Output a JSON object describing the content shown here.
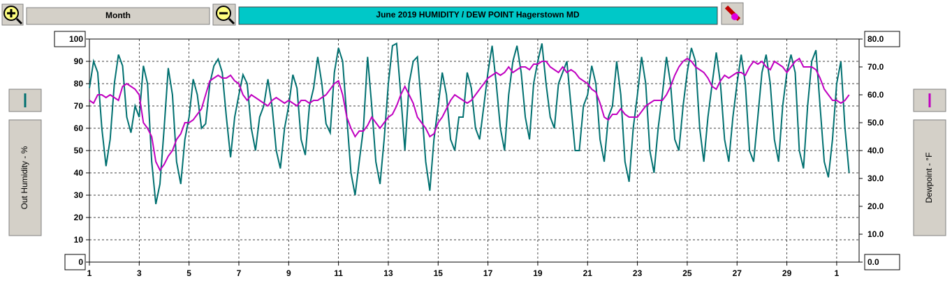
{
  "toolbar": {
    "range": "Month"
  },
  "chart_data": {
    "type": "line",
    "title": "June  2019     HUMIDITY / DEW POINT  Hagerstown MD",
    "ylabel": "Out Humidity - %",
    "y2label": "Dewpoint - °F",
    "grid": true,
    "xlim": [
      0,
      30.9
    ],
    "ylim": [
      0,
      100
    ],
    "y2lim": [
      0,
      80
    ],
    "xticks": [
      {
        "value": 0,
        "label": "1"
      },
      {
        "value": 2,
        "label": "3"
      },
      {
        "value": 4,
        "label": "5"
      },
      {
        "value": 6,
        "label": "7"
      },
      {
        "value": 8,
        "label": "9"
      },
      {
        "value": 10,
        "label": "11"
      },
      {
        "value": 12,
        "label": "13"
      },
      {
        "value": 14,
        "label": "15"
      },
      {
        "value": 16,
        "label": "17"
      },
      {
        "value": 18,
        "label": "19"
      },
      {
        "value": 20,
        "label": "21"
      },
      {
        "value": 22,
        "label": "23"
      },
      {
        "value": 24,
        "label": "25"
      },
      {
        "value": 26,
        "label": "27"
      },
      {
        "value": 28,
        "label": "29"
      },
      {
        "value": 30,
        "label": "1"
      }
    ],
    "yticks": [
      0,
      10,
      20,
      30,
      40,
      50,
      60,
      70,
      80,
      90,
      100
    ],
    "y2ticks": [
      {
        "value": 0,
        "label": "0.0"
      },
      {
        "value": 10,
        "label": "10.0"
      },
      {
        "value": 20,
        "label": "20.0"
      },
      {
        "value": 30,
        "label": "30.0"
      },
      {
        "value": 40,
        "label": "40.0"
      },
      {
        "value": 50,
        "label": "50.0"
      },
      {
        "value": 60,
        "label": "60.0"
      },
      {
        "value": 70,
        "label": "70.0"
      },
      {
        "value": 80,
        "label": "80.0"
      }
    ],
    "x": [
      0,
      0.167,
      0.333,
      0.5,
      0.667,
      0.833,
      1,
      1.167,
      1.333,
      1.5,
      1.667,
      1.833,
      2,
      2.167,
      2.333,
      2.5,
      2.667,
      2.833,
      3,
      3.167,
      3.333,
      3.5,
      3.667,
      3.833,
      4,
      4.167,
      4.333,
      4.5,
      4.667,
      4.833,
      5,
      5.167,
      5.333,
      5.5,
      5.667,
      5.833,
      6,
      6.167,
      6.333,
      6.5,
      6.667,
      6.833,
      7,
      7.167,
      7.333,
      7.5,
      7.667,
      7.833,
      8,
      8.167,
      8.333,
      8.5,
      8.667,
      8.833,
      9,
      9.167,
      9.333,
      9.5,
      9.667,
      9.833,
      10,
      10.167,
      10.333,
      10.5,
      10.667,
      10.833,
      11,
      11.167,
      11.333,
      11.5,
      11.667,
      11.833,
      12,
      12.167,
      12.333,
      12.5,
      12.667,
      12.833,
      13,
      13.167,
      13.333,
      13.5,
      13.667,
      13.833,
      14,
      14.167,
      14.333,
      14.5,
      14.667,
      14.833,
      15,
      15.167,
      15.333,
      15.5,
      15.667,
      15.833,
      16,
      16.167,
      16.333,
      16.5,
      16.667,
      16.833,
      17,
      17.167,
      17.333,
      17.5,
      17.667,
      17.833,
      18,
      18.167,
      18.333,
      18.5,
      18.667,
      18.833,
      19,
      19.167,
      19.333,
      19.5,
      19.667,
      19.833,
      20,
      20.167,
      20.333,
      20.5,
      20.667,
      20.833,
      21,
      21.167,
      21.333,
      21.5,
      21.667,
      21.833,
      22,
      22.167,
      22.333,
      22.5,
      22.667,
      22.833,
      23,
      23.167,
      23.333,
      23.5,
      23.667,
      23.833,
      24,
      24.167,
      24.333,
      24.5,
      24.667,
      24.833,
      25,
      25.167,
      25.333,
      25.5,
      25.667,
      25.833,
      26,
      26.167,
      26.333,
      26.5,
      26.667,
      26.833,
      27,
      27.167,
      27.333,
      27.5,
      27.667,
      27.833,
      28,
      28.167,
      28.333,
      28.5,
      28.667,
      28.833,
      29,
      29.167,
      29.333,
      29.5,
      29.667,
      29.833,
      30,
      30.167,
      30.333,
      30.5
    ],
    "series": [
      {
        "name": "Out Humidity",
        "color": "#007070",
        "axis": "y",
        "values": [
          78,
          90,
          85,
          60,
          43,
          55,
          80,
          93,
          88,
          65,
          58,
          70,
          65,
          88,
          80,
          45,
          26,
          35,
          60,
          87,
          75,
          45,
          35,
          55,
          65,
          82,
          75,
          60,
          62,
          80,
          88,
          91,
          85,
          65,
          47,
          65,
          75,
          84,
          80,
          60,
          50,
          65,
          70,
          82,
          70,
          50,
          42,
          60,
          70,
          84,
          78,
          55,
          48,
          70,
          78,
          92,
          80,
          62,
          58,
          85,
          96,
          90,
          65,
          40,
          30,
          45,
          60,
          92,
          70,
          45,
          35,
          55,
          80,
          97,
          98,
          75,
          50,
          80,
          90,
          92,
          70,
          45,
          32,
          55,
          70,
          85,
          75,
          55,
          50,
          65,
          65,
          85,
          78,
          60,
          55,
          70,
          85,
          97,
          80,
          60,
          50,
          75,
          90,
          97,
          85,
          65,
          55,
          80,
          90,
          98,
          80,
          65,
          60,
          80,
          85,
          90,
          70,
          50,
          50,
          70,
          75,
          88,
          80,
          55,
          45,
          65,
          70,
          90,
          75,
          45,
          36,
          60,
          75,
          92,
          80,
          50,
          40,
          60,
          75,
          92,
          80,
          55,
          50,
          70,
          85,
          96,
          90,
          60,
          45,
          65,
          80,
          94,
          80,
          55,
          45,
          65,
          80,
          93,
          80,
          50,
          45,
          65,
          85,
          93,
          80,
          55,
          45,
          70,
          85,
          93,
          85,
          50,
          42,
          70,
          90,
          95,
          70,
          45,
          38,
          55,
          80,
          90,
          60,
          40
        ]
      },
      {
        "name": "Dewpoint",
        "color": "#c000c0",
        "axis": "y2",
        "values": [
          58,
          57,
          60,
          60,
          59,
          60,
          59,
          58,
          63,
          64,
          63,
          62,
          60,
          50,
          48,
          45,
          36,
          33,
          35,
          38,
          40,
          44,
          46,
          50,
          50,
          51,
          53,
          55,
          60,
          65,
          66,
          67,
          66,
          66,
          67,
          65,
          64,
          60,
          58,
          60,
          59,
          58,
          57,
          56,
          58,
          59,
          58,
          57,
          58,
          57,
          56,
          58,
          58,
          57,
          58,
          58,
          59,
          60,
          62,
          64,
          65,
          60,
          52,
          48,
          45,
          47,
          47,
          49,
          52,
          50,
          48,
          50,
          52,
          53,
          56,
          60,
          63,
          60,
          57,
          52,
          50,
          48,
          45,
          46,
          50,
          52,
          55,
          58,
          60,
          59,
          58,
          57,
          58,
          60,
          62,
          64,
          66,
          67,
          68,
          67,
          68,
          70,
          68,
          69,
          70,
          70,
          69,
          71,
          71,
          72,
          72,
          70,
          69,
          68,
          70,
          68,
          69,
          68,
          66,
          65,
          64,
          62,
          61,
          57,
          52,
          51,
          53,
          53,
          55,
          53,
          52,
          52,
          52,
          54,
          56,
          57,
          58,
          58,
          58,
          60,
          63,
          67,
          70,
          72,
          73,
          72,
          70,
          69,
          68,
          66,
          63,
          62,
          65,
          67,
          66,
          67,
          68,
          68,
          67,
          70,
          72,
          71,
          72,
          70,
          69,
          72,
          71,
          70,
          68,
          70,
          72,
          73,
          70,
          70,
          70,
          69,
          66,
          62,
          60,
          58,
          58,
          57,
          58,
          60
        ]
      }
    ]
  }
}
